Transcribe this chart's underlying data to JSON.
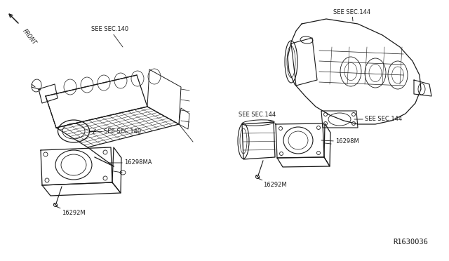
{
  "background_color": "#ffffff",
  "line_color": "#1a1a1a",
  "diagram_number": "R1630036",
  "labels": {
    "front": "FRONT",
    "see_sec_140_top": "SEE SEC.140",
    "see_sec_140_gasket": "SEE SEC.140",
    "see_sec_144_top": "SEE SEC.144",
    "see_sec_144_gasket": "SEE SEC.144",
    "see_sec_144_throttle": "SEE SEC.144",
    "part_16298MA": "16298MA",
    "part_16292M_left": "16292M",
    "part_16298M": "16298M",
    "part_16292M_right": "16292M"
  },
  "font_size": 6.0,
  "font_size_diag": 7.5
}
